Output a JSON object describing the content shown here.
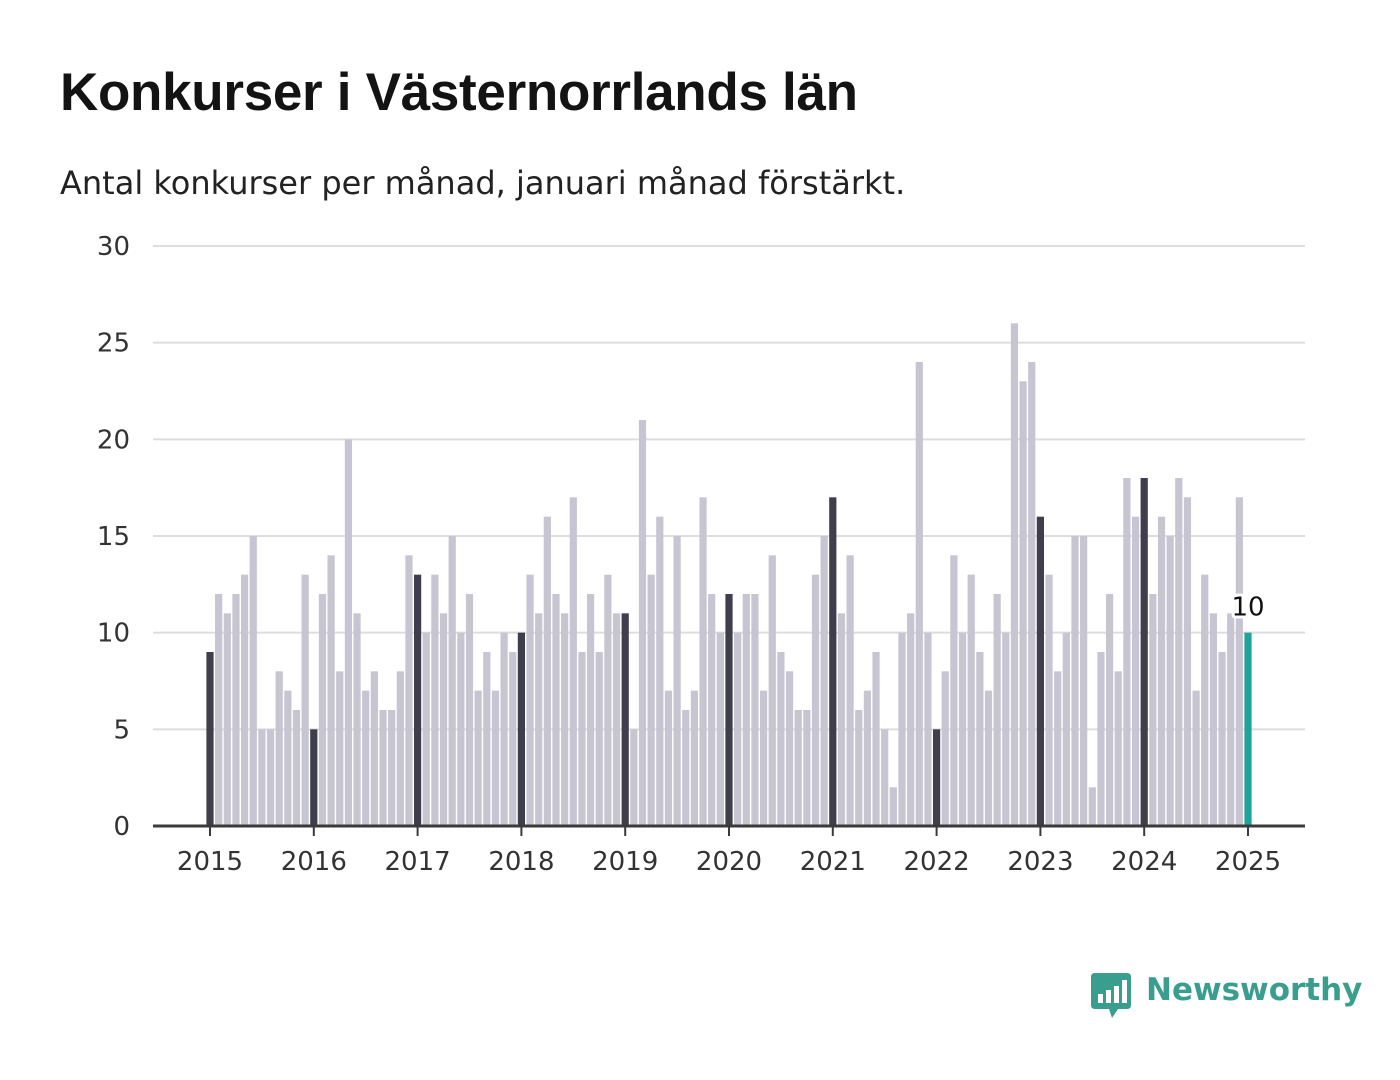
{
  "title": "Konkurser i Västernorrlands län",
  "subtitle": "Antal konkurser per månad, januari månad förstärkt.",
  "brand": {
    "name": "Newsworthy",
    "color": "#3a9e8e",
    "icon": "newsworthy-bar-chart-icon"
  },
  "colors": {
    "bar": "#c6c5d1",
    "january": "#3f3e4c",
    "latest": "#1fa39b",
    "grid": "#dddddd",
    "axis": "#3a3a3a"
  },
  "chart_data": {
    "type": "bar",
    "title": "Konkurser i Västernorrlands län",
    "subtitle": "Antal konkurser per månad, januari månad förstärkt.",
    "xlabel": "",
    "ylabel": "",
    "ylim": [
      0,
      30
    ],
    "yticks": [
      0,
      5,
      10,
      15,
      20,
      25,
      30
    ],
    "xticks": [
      "2015",
      "2016",
      "2017",
      "2018",
      "2019",
      "2020",
      "2021",
      "2022",
      "2023",
      "2024",
      "2025"
    ],
    "start": "2015-01",
    "grid": true,
    "highlight": "januari",
    "latest_label": "10",
    "values": [
      9,
      12,
      11,
      12,
      13,
      15,
      5,
      5,
      8,
      7,
      6,
      13,
      5,
      12,
      14,
      8,
      20,
      11,
      7,
      8,
      6,
      6,
      8,
      14,
      13,
      10,
      13,
      11,
      15,
      10,
      12,
      7,
      9,
      7,
      10,
      9,
      10,
      13,
      11,
      16,
      12,
      11,
      17,
      9,
      12,
      9,
      13,
      11,
      11,
      5,
      21,
      13,
      16,
      7,
      15,
      6,
      7,
      17,
      12,
      10,
      12,
      10,
      12,
      12,
      7,
      14,
      9,
      8,
      6,
      6,
      13,
      15,
      17,
      11,
      14,
      6,
      7,
      9,
      5,
      2,
      10,
      11,
      24,
      10,
      5,
      8,
      14,
      10,
      13,
      9,
      7,
      12,
      10,
      26,
      23,
      24,
      16,
      13,
      8,
      10,
      15,
      15,
      2,
      9,
      12,
      8,
      18,
      16,
      18,
      12,
      16,
      15,
      18,
      17,
      7,
      13,
      11,
      9,
      11,
      17,
      10
    ]
  }
}
